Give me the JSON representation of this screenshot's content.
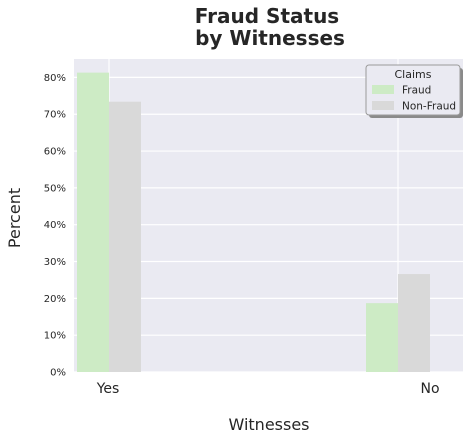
{
  "chart_data": {
    "type": "bar",
    "title_lines": [
      "Fraud Status",
      "by Witnesses"
    ],
    "xlabel": "Witnesses",
    "ylabel": "Percent",
    "categories": [
      "Yes",
      "No"
    ],
    "series": [
      {
        "name": "Fraud",
        "values": [
          81.3,
          18.7
        ],
        "color": "#cdebc5"
      },
      {
        "name": "Non-Fraud",
        "values": [
          73.4,
          26.6
        ],
        "color": "#d9d9d9"
      }
    ],
    "ylim": [
      0,
      85
    ],
    "yticks": [
      0,
      10,
      20,
      30,
      40,
      50,
      60,
      70,
      80
    ],
    "ytick_labels": [
      "0%",
      "10%",
      "20%",
      "30%",
      "40%",
      "50%",
      "60%",
      "70%",
      "80%"
    ],
    "grid": true,
    "background": "#eaeaf2",
    "legend": {
      "title": "Claims",
      "position": "top-right"
    }
  }
}
